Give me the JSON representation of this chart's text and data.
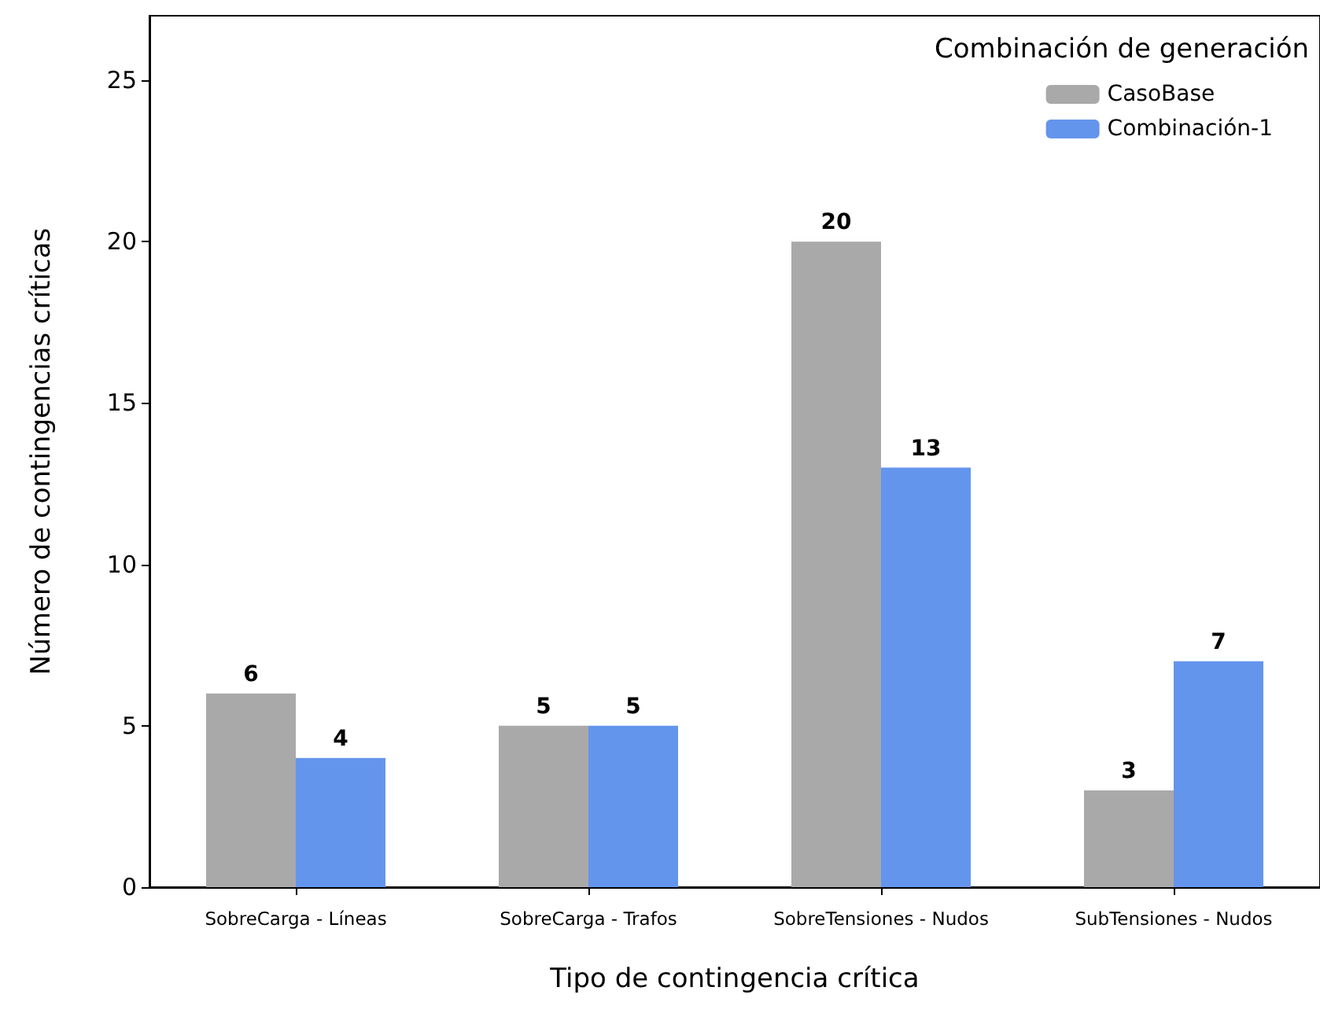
{
  "chart_data": {
    "type": "bar",
    "xlabel": "Tipo de contingencia crítica",
    "ylabel": "Número de contingencias críticas",
    "legend_title": "Combinación de generación",
    "categories": [
      "SobreCarga - Líneas",
      "SobreCarga - Trafos",
      "SobreTensiones - Nudos",
      "SubTensiones - Nudos"
    ],
    "series": [
      {
        "name": "CasoBase",
        "color": "#a9a9a9",
        "values": [
          6,
          5,
          20,
          3
        ]
      },
      {
        "name": "Combinación-1",
        "color": "#6495ed",
        "values": [
          4,
          5,
          13,
          7
        ]
      }
    ],
    "ylim": [
      0,
      27
    ],
    "yticks": [
      0,
      5,
      10,
      15,
      20,
      25
    ],
    "data_labels": true,
    "legend": "top right",
    "grid": false
  }
}
